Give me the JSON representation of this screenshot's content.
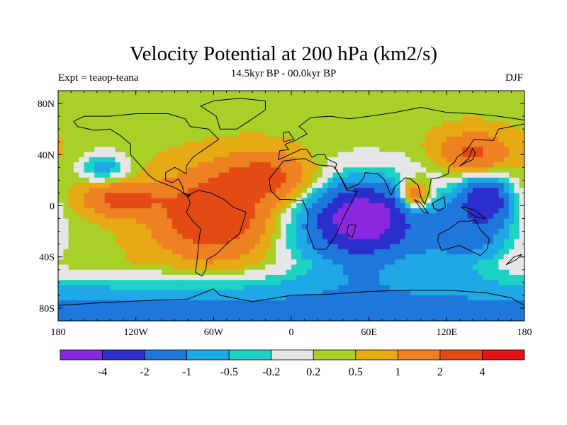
{
  "chart_data": {
    "type": "heatmap",
    "title": "Velocity Potential at 200 hPa (km2/s)",
    "subtitle": "14.5kyr BP - 00.0kyr BP",
    "left_label": "Expt = teaop-teana",
    "right_label": "DJF",
    "projection": "cylindrical-equidistant",
    "xlim": [
      -180,
      180
    ],
    "ylim": [
      -90,
      90
    ],
    "x_ticks": [
      {
        "value": -180,
        "label": "180"
      },
      {
        "value": -120,
        "label": "120W"
      },
      {
        "value": -60,
        "label": "60W"
      },
      {
        "value": 0,
        "label": "0"
      },
      {
        "value": 60,
        "label": "60E"
      },
      {
        "value": 120,
        "label": "120E"
      },
      {
        "value": 180,
        "label": "180"
      }
    ],
    "y_ticks": [
      {
        "value": 80,
        "label": "80N"
      },
      {
        "value": 40,
        "label": "40N"
      },
      {
        "value": 0,
        "label": "0"
      },
      {
        "value": -40,
        "label": "40S"
      },
      {
        "value": -80,
        "label": "80S"
      }
    ],
    "colorbar": {
      "colors": [
        "#8a28e0",
        "#2c2ecc",
        "#1e78dc",
        "#1ea8e6",
        "#1cd2c4",
        "#e6e6e6",
        "#a8d028",
        "#e6aa14",
        "#ee8222",
        "#e44a14",
        "#e41414"
      ],
      "levels": [
        -4,
        -2,
        -1,
        -0.5,
        -0.2,
        0.2,
        0.5,
        1,
        2,
        4
      ],
      "labels": [
        "-4",
        "-2",
        "-1",
        "-0.5",
        "-0.2",
        "0.2",
        "0.5",
        "1",
        "2",
        "4"
      ]
    },
    "anomaly_centers": [
      {
        "lon": 55,
        "lat": -10,
        "value": -5.0,
        "spread_lon": 22,
        "spread_lat": 16
      },
      {
        "lon": 55,
        "lat": -15,
        "value": -3.0,
        "spread_lon": 55,
        "spread_lat": 38
      },
      {
        "lon": 150,
        "lat": 5,
        "value": -3.2,
        "spread_lon": 18,
        "spread_lat": 16
      },
      {
        "lon": 140,
        "lat": -22,
        "value": -1.6,
        "spread_lon": 35,
        "spread_lat": 28
      },
      {
        "lon": -60,
        "lat": -8,
        "value": 3.0,
        "spread_lon": 40,
        "spread_lat": 28
      },
      {
        "lon": -130,
        "lat": 5,
        "value": 2.0,
        "spread_lon": 28,
        "spread_lat": 12
      },
      {
        "lon": -20,
        "lat": 22,
        "value": 2.1,
        "spread_lon": 35,
        "spread_lat": 18
      },
      {
        "lon": 95,
        "lat": 8,
        "value": 2.2,
        "spread_lon": 12,
        "spread_lat": 12
      },
      {
        "lon": 140,
        "lat": 42,
        "value": 1.8,
        "spread_lon": 25,
        "spread_lat": 14
      },
      {
        "lon": -145,
        "lat": 30,
        "value": -1.2,
        "spread_lon": 18,
        "spread_lat": 12
      }
    ]
  }
}
